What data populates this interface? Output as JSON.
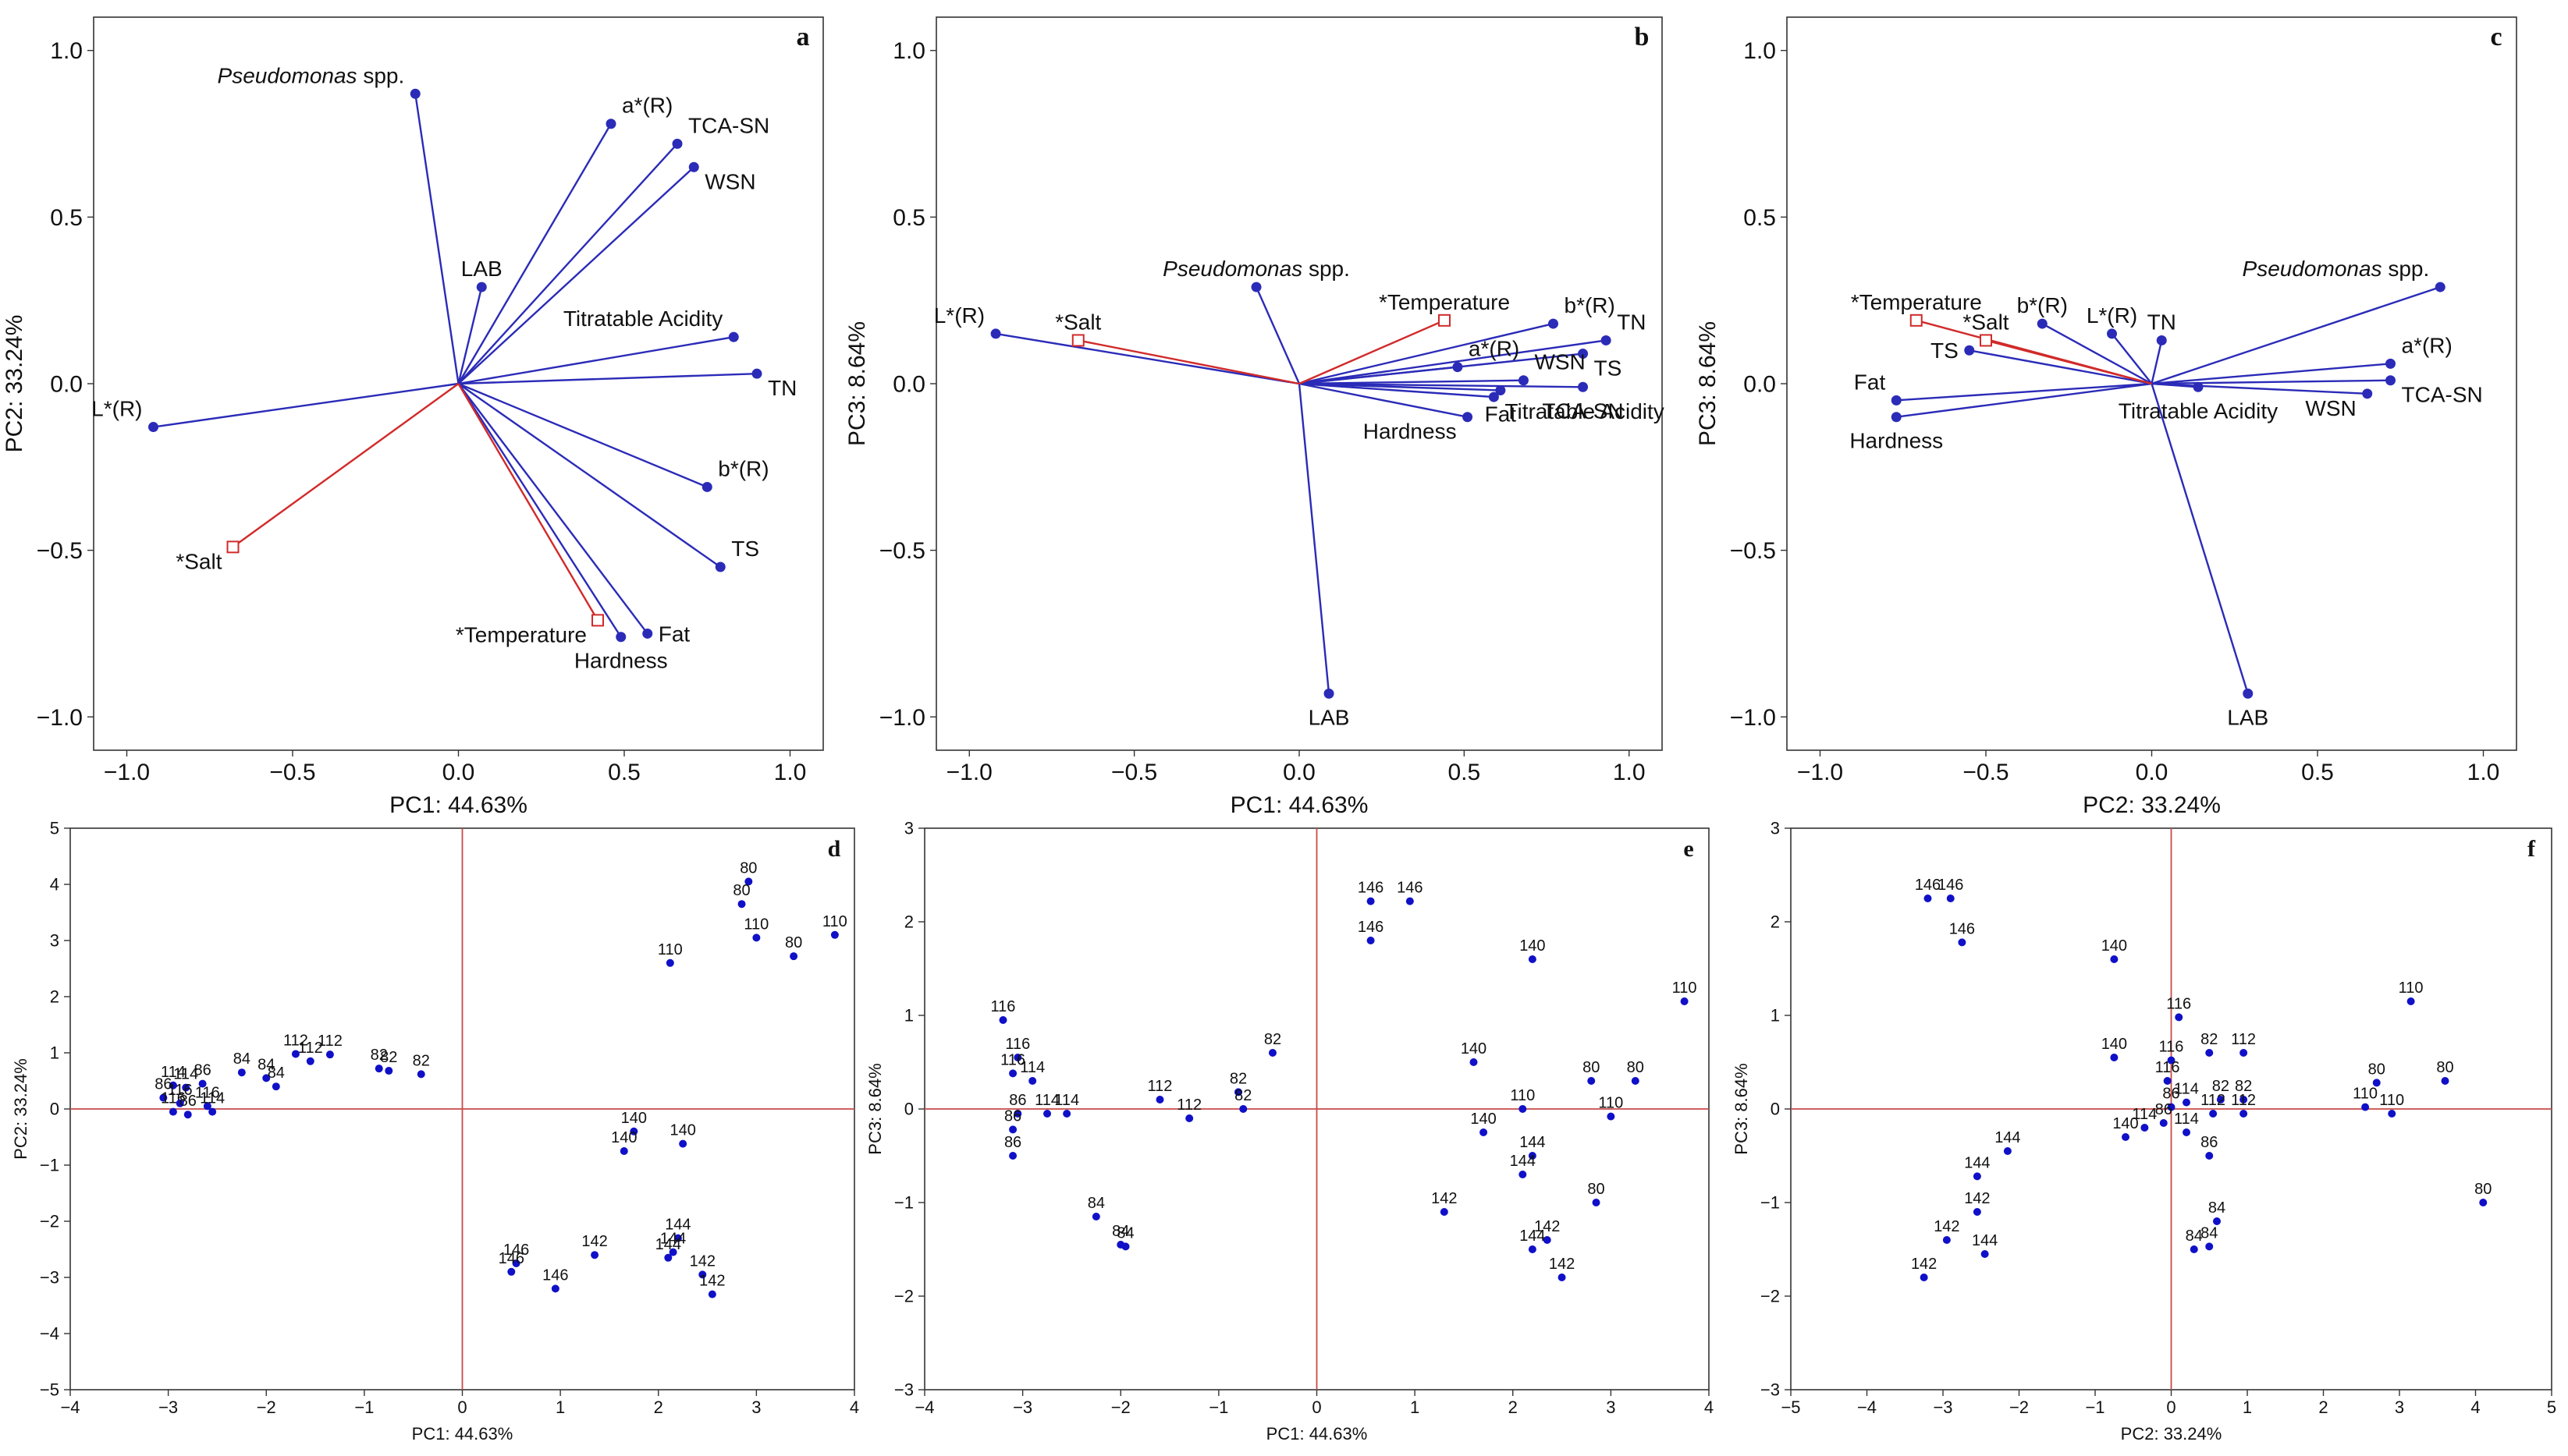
{
  "colors": {
    "vector": "#2b2bb8",
    "supplementary": "#d12a2a",
    "point": "#1010c8",
    "axis": "#333333",
    "crosshair": "#c84a4a"
  },
  "chart_data": [
    {
      "type": "scatter",
      "subtype": "loadings",
      "panel_label": "a",
      "xlabel": "PC1: 44.63%",
      "ylabel": "PC2: 33.24%",
      "xlim": [
        -1.1,
        1.1
      ],
      "ylim": [
        -1.1,
        1.1
      ],
      "xticks": [
        -1.0,
        -0.5,
        0.0,
        0.5,
        1.0
      ],
      "xtick_labels": [
        "−1.0",
        "−0.5",
        "0.0",
        "0.5",
        "1.0"
      ],
      "yticks": [
        -1.0,
        -0.5,
        0.0,
        0.5,
        1.0
      ],
      "ytick_labels": [
        "−1.0",
        "−0.5",
        "0.0",
        "0.5",
        "1.0"
      ],
      "vectors": [
        {
          "label": "Pseudomonas spp.",
          "x": -0.13,
          "y": 0.87,
          "italic_part": "Pseudomonas",
          "pos": "tl"
        },
        {
          "label": "a*(R)",
          "x": 0.46,
          "y": 0.78,
          "pos": "tr"
        },
        {
          "label": "TCA-SN",
          "x": 0.66,
          "y": 0.72,
          "pos": "tr"
        },
        {
          "label": "WSN",
          "x": 0.71,
          "y": 0.65,
          "pos": "br"
        },
        {
          "label": "LAB",
          "x": 0.07,
          "y": 0.29,
          "pos": "t"
        },
        {
          "label": "Titratable Acidity",
          "x": 0.83,
          "y": 0.14,
          "pos": "tl"
        },
        {
          "label": "TN",
          "x": 0.9,
          "y": 0.03,
          "pos": "br"
        },
        {
          "label": "L*(R)",
          "x": -0.92,
          "y": -0.13,
          "pos": "tl"
        },
        {
          "label": "b*(R)",
          "x": 0.75,
          "y": -0.31,
          "pos": "tr"
        },
        {
          "label": "TS",
          "x": 0.79,
          "y": -0.55,
          "pos": "tr"
        },
        {
          "label": "Fat",
          "x": 0.57,
          "y": -0.75,
          "pos": "r"
        },
        {
          "label": "Hardness",
          "x": 0.49,
          "y": -0.76,
          "pos": "b"
        }
      ],
      "supplementary": [
        {
          "label": "*Salt",
          "x": -0.68,
          "y": -0.49,
          "pos": "bl"
        },
        {
          "label": "*Temperature",
          "x": 0.42,
          "y": -0.71,
          "pos": "bl"
        }
      ]
    },
    {
      "type": "scatter",
      "subtype": "loadings",
      "panel_label": "b",
      "xlabel": "PC1: 44.63%",
      "ylabel": "PC3: 8.64%",
      "xlim": [
        -1.1,
        1.1
      ],
      "ylim": [
        -1.1,
        1.1
      ],
      "xticks": [
        -1.0,
        -0.5,
        0.0,
        0.5,
        1.0
      ],
      "xtick_labels": [
        "−1.0",
        "−0.5",
        "0.0",
        "0.5",
        "1.0"
      ],
      "yticks": [
        -1.0,
        -0.5,
        0.0,
        0.5,
        1.0
      ],
      "ytick_labels": [
        "−1.0",
        "−0.5",
        "0.0",
        "0.5",
        "1.0"
      ],
      "vectors": [
        {
          "label": "L*(R)",
          "x": -0.92,
          "y": 0.15,
          "pos": "tl"
        },
        {
          "label": "Pseudomonas spp.",
          "x": -0.13,
          "y": 0.29,
          "italic_part": "Pseudomonas",
          "pos": "t"
        },
        {
          "label": "b*(R)",
          "x": 0.77,
          "y": 0.18,
          "pos": "tr"
        },
        {
          "label": "TN",
          "x": 0.93,
          "y": 0.13,
          "pos": "tr"
        },
        {
          "label": "a*(R)",
          "x": 0.48,
          "y": 0.05,
          "pos": "tr"
        },
        {
          "label": "TS",
          "x": 0.86,
          "y": 0.09,
          "pos": "br"
        },
        {
          "label": "WSN",
          "x": 0.68,
          "y": 0.01,
          "pos": "tr"
        },
        {
          "label": "Titratable Acidity",
          "x": 0.59,
          "y": -0.04,
          "pos": "br"
        },
        {
          "label": "TCA-SN",
          "x": 0.86,
          "y": -0.01,
          "pos": "b"
        },
        {
          "label": "Hardness",
          "x": 0.51,
          "y": -0.1,
          "pos": "bl"
        },
        {
          "label": "Fat",
          "x": 0.61,
          "y": -0.02,
          "pos": "b"
        },
        {
          "label": "LAB",
          "x": 0.09,
          "y": -0.93,
          "pos": "b"
        }
      ],
      "supplementary": [
        {
          "label": "*Salt",
          "x": -0.67,
          "y": 0.13,
          "pos": "t"
        },
        {
          "label": "*Temperature",
          "x": 0.44,
          "y": 0.19,
          "pos": "t"
        }
      ]
    },
    {
      "type": "scatter",
      "subtype": "loadings",
      "panel_label": "c",
      "xlabel": "PC2: 33.24%",
      "ylabel": "PC3: 8.64%",
      "xlim": [
        -1.1,
        1.1
      ],
      "ylim": [
        -1.1,
        1.1
      ],
      "xticks": [
        -1.0,
        -0.5,
        0.0,
        0.5,
        1.0
      ],
      "xtick_labels": [
        "−1.0",
        "−0.5",
        "0.0",
        "0.5",
        "1.0"
      ],
      "yticks": [
        -1.0,
        -0.5,
        0.0,
        0.5,
        1.0
      ],
      "ytick_labels": [
        "−1.0",
        "−0.5",
        "0.0",
        "0.5",
        "1.0"
      ],
      "vectors": [
        {
          "label": "Pseudomonas spp.",
          "x": 0.87,
          "y": 0.29,
          "italic_part": "Pseudomonas",
          "pos": "tl"
        },
        {
          "label": "a*(R)",
          "x": 0.72,
          "y": 0.06,
          "pos": "tr"
        },
        {
          "label": "TCA-SN",
          "x": 0.72,
          "y": 0.01,
          "pos": "br"
        },
        {
          "label": "WSN",
          "x": 0.65,
          "y": -0.03,
          "pos": "bl"
        },
        {
          "label": "Titratable Acidity",
          "x": 0.14,
          "y": -0.01,
          "pos": "b"
        },
        {
          "label": "TN",
          "x": 0.03,
          "y": 0.13,
          "pos": "t"
        },
        {
          "label": "L*(R)",
          "x": -0.12,
          "y": 0.15,
          "pos": "t"
        },
        {
          "label": "b*(R)",
          "x": -0.33,
          "y": 0.18,
          "pos": "t"
        },
        {
          "label": "TS",
          "x": -0.55,
          "y": 0.1,
          "pos": "l"
        },
        {
          "label": "Fat",
          "x": -0.77,
          "y": -0.05,
          "pos": "tl"
        },
        {
          "label": "Hardness",
          "x": -0.77,
          "y": -0.1,
          "pos": "b"
        },
        {
          "label": "LAB",
          "x": 0.29,
          "y": -0.93,
          "pos": "b"
        }
      ],
      "supplementary": [
        {
          "label": "*Temperature",
          "x": -0.71,
          "y": 0.19,
          "pos": "t"
        },
        {
          "label": "*Salt",
          "x": -0.5,
          "y": 0.13,
          "pos": "t"
        }
      ]
    },
    {
      "type": "scatter",
      "subtype": "scores",
      "panel_label": "d",
      "xlabel": "PC1: 44.63%",
      "ylabel": "PC2: 33.24%",
      "xlim": [
        -4,
        4
      ],
      "ylim": [
        -5,
        5
      ],
      "xticks": [
        -4,
        -3,
        -2,
        -1,
        0,
        1,
        2,
        3,
        4
      ],
      "xtick_labels": [
        "−4",
        "−3",
        "−2",
        "−1",
        "0",
        "1",
        "2",
        "3",
        "4"
      ],
      "yticks": [
        -5,
        -4,
        -3,
        -2,
        -1,
        0,
        1,
        2,
        3,
        4,
        5
      ],
      "ytick_labels": [
        "−5",
        "−4",
        "−3",
        "−2",
        "−1",
        "0",
        "1",
        "2",
        "3",
        "4",
        "5"
      ],
      "points": [
        {
          "label": "80",
          "x": 2.92,
          "y": 4.05
        },
        {
          "label": "80",
          "x": 2.85,
          "y": 3.65
        },
        {
          "label": "110",
          "x": 3.0,
          "y": 3.05
        },
        {
          "label": "80",
          "x": 3.38,
          "y": 2.72
        },
        {
          "label": "110",
          "x": 3.8,
          "y": 3.1
        },
        {
          "label": "110",
          "x": 2.12,
          "y": 2.6
        },
        {
          "label": "112",
          "x": -1.7,
          "y": 0.98
        },
        {
          "label": "112",
          "x": -1.35,
          "y": 0.97
        },
        {
          "label": "112",
          "x": -1.55,
          "y": 0.85
        },
        {
          "label": "82",
          "x": -0.85,
          "y": 0.72
        },
        {
          "label": "82",
          "x": -0.75,
          "y": 0.68
        },
        {
          "label": "82",
          "x": -0.42,
          "y": 0.62
        },
        {
          "label": "84",
          "x": -2.25,
          "y": 0.65
        },
        {
          "label": "84",
          "x": -2.0,
          "y": 0.55
        },
        {
          "label": "84",
          "x": -1.9,
          "y": 0.4
        },
        {
          "label": "114",
          "x": -2.95,
          "y": 0.42
        },
        {
          "label": "114",
          "x": -2.82,
          "y": 0.38
        },
        {
          "label": "86",
          "x": -2.65,
          "y": 0.45
        },
        {
          "label": "86",
          "x": -3.05,
          "y": 0.2
        },
        {
          "label": "116",
          "x": -2.95,
          "y": -0.05
        },
        {
          "label": "116",
          "x": -2.88,
          "y": 0.1
        },
        {
          "label": "86",
          "x": -2.8,
          "y": -0.1
        },
        {
          "label": "116",
          "x": -2.6,
          "y": 0.05
        },
        {
          "label": "114",
          "x": -2.55,
          "y": -0.05
        },
        {
          "label": "140",
          "x": 1.75,
          "y": -0.4
        },
        {
          "label": "140",
          "x": 2.25,
          "y": -0.62
        },
        {
          "label": "140",
          "x": 1.65,
          "y": -0.75
        },
        {
          "label": "144",
          "x": 2.2,
          "y": -2.3
        },
        {
          "label": "144",
          "x": 2.15,
          "y": -2.55
        },
        {
          "label": "144",
          "x": 2.1,
          "y": -2.65
        },
        {
          "label": "142",
          "x": 1.35,
          "y": -2.6
        },
        {
          "label": "146",
          "x": 0.55,
          "y": -2.75
        },
        {
          "label": "146",
          "x": 0.5,
          "y": -2.9
        },
        {
          "label": "146",
          "x": 0.95,
          "y": -3.2
        },
        {
          "label": "142",
          "x": 2.45,
          "y": -2.95
        },
        {
          "label": "142",
          "x": 2.55,
          "y": -3.3
        }
      ]
    },
    {
      "type": "scatter",
      "subtype": "scores",
      "panel_label": "e",
      "xlabel": "PC1: 44.63%",
      "ylabel": "PC3: 8.64%",
      "xlim": [
        -4,
        4
      ],
      "ylim": [
        -3,
        3
      ],
      "xticks": [
        -4,
        -3,
        -2,
        -1,
        0,
        1,
        2,
        3,
        4
      ],
      "xtick_labels": [
        "−4",
        "−3",
        "−2",
        "−1",
        "0",
        "1",
        "2",
        "3",
        "4"
      ],
      "yticks": [
        -3,
        -2,
        -1,
        0,
        1,
        2,
        3
      ],
      "ytick_labels": [
        "−3",
        "−2",
        "−1",
        "0",
        "1",
        "2",
        "3"
      ],
      "points": [
        {
          "label": "146",
          "x": 0.55,
          "y": 2.22
        },
        {
          "label": "146",
          "x": 0.95,
          "y": 2.22
        },
        {
          "label": "146",
          "x": 0.55,
          "y": 1.8
        },
        {
          "label": "140",
          "x": 2.2,
          "y": 1.6
        },
        {
          "label": "110",
          "x": 3.75,
          "y": 1.15
        },
        {
          "label": "116",
          "x": -3.2,
          "y": 0.95
        },
        {
          "label": "116",
          "x": -3.05,
          "y": 0.55
        },
        {
          "label": "116",
          "x": -3.1,
          "y": 0.38
        },
        {
          "label": "114",
          "x": -2.9,
          "y": 0.3
        },
        {
          "label": "112",
          "x": -1.6,
          "y": 0.1
        },
        {
          "label": "112",
          "x": -1.3,
          "y": -0.1
        },
        {
          "label": "82",
          "x": -0.45,
          "y": 0.6
        },
        {
          "label": "82",
          "x": -0.8,
          "y": 0.18
        },
        {
          "label": "82",
          "x": -0.75,
          "y": 0.0
        },
        {
          "label": "86",
          "x": -3.05,
          "y": -0.05
        },
        {
          "label": "114",
          "x": -2.75,
          "y": -0.05
        },
        {
          "label": "114",
          "x": -2.55,
          "y": -0.05
        },
        {
          "label": "86",
          "x": -3.1,
          "y": -0.22
        },
        {
          "label": "86",
          "x": -3.1,
          "y": -0.5
        },
        {
          "label": "84",
          "x": -2.25,
          "y": -1.15
        },
        {
          "label": "84",
          "x": -2.0,
          "y": -1.45
        },
        {
          "label": "84",
          "x": -1.95,
          "y": -1.47
        },
        {
          "label": "140",
          "x": 1.6,
          "y": 0.5
        },
        {
          "label": "110",
          "x": 2.1,
          "y": 0.0
        },
        {
          "label": "140",
          "x": 1.7,
          "y": -0.25
        },
        {
          "label": "144",
          "x": 2.2,
          "y": -0.5
        },
        {
          "label": "144",
          "x": 2.1,
          "y": -0.7
        },
        {
          "label": "80",
          "x": 2.8,
          "y": 0.3
        },
        {
          "label": "80",
          "x": 3.25,
          "y": 0.3
        },
        {
          "label": "110",
          "x": 3.0,
          "y": -0.08
        },
        {
          "label": "142",
          "x": 1.3,
          "y": -1.1
        },
        {
          "label": "80",
          "x": 2.85,
          "y": -1.0
        },
        {
          "label": "142",
          "x": 2.35,
          "y": -1.4
        },
        {
          "label": "144",
          "x": 2.2,
          "y": -1.5
        },
        {
          "label": "142",
          "x": 2.5,
          "y": -1.8
        }
      ]
    },
    {
      "type": "scatter",
      "subtype": "scores",
      "panel_label": "f",
      "xlabel": "PC2: 33.24%",
      "ylabel": "PC3: 8.64%",
      "xlim": [
        -5,
        5
      ],
      "ylim": [
        -3,
        3
      ],
      "xticks": [
        -5,
        -4,
        -3,
        -2,
        -1,
        0,
        1,
        2,
        3,
        4,
        5
      ],
      "xtick_labels": [
        "−5",
        "−4",
        "−3",
        "−2",
        "−1",
        "0",
        "1",
        "2",
        "3",
        "4",
        "5"
      ],
      "yticks": [
        -3,
        -2,
        -1,
        0,
        1,
        2,
        3
      ],
      "ytick_labels": [
        "−3",
        "−2",
        "−1",
        "0",
        "1",
        "2",
        "3"
      ],
      "points": [
        {
          "label": "146",
          "x": -3.2,
          "y": 2.25
        },
        {
          "label": "146",
          "x": -2.9,
          "y": 2.25
        },
        {
          "label": "146",
          "x": -2.75,
          "y": 1.78
        },
        {
          "label": "140",
          "x": -0.75,
          "y": 1.6
        },
        {
          "label": "116",
          "x": 0.1,
          "y": 0.98
        },
        {
          "label": "110",
          "x": 3.15,
          "y": 1.15
        },
        {
          "label": "140",
          "x": -0.75,
          "y": 0.55
        },
        {
          "label": "116",
          "x": 0.0,
          "y": 0.52
        },
        {
          "label": "82",
          "x": 0.5,
          "y": 0.6
        },
        {
          "label": "112",
          "x": 0.95,
          "y": 0.6
        },
        {
          "label": "116",
          "x": -0.05,
          "y": 0.3
        },
        {
          "label": "114",
          "x": 0.2,
          "y": 0.07
        },
        {
          "label": "82",
          "x": 0.65,
          "y": 0.1
        },
        {
          "label": "82",
          "x": 0.95,
          "y": 0.1
        },
        {
          "label": "86",
          "x": 0.0,
          "y": 0.02
        },
        {
          "label": "112",
          "x": 0.55,
          "y": -0.05
        },
        {
          "label": "112",
          "x": 0.95,
          "y": -0.05
        },
        {
          "label": "114",
          "x": -0.35,
          "y": -0.2
        },
        {
          "label": "140",
          "x": -0.6,
          "y": -0.3
        },
        {
          "label": "114",
          "x": 0.2,
          "y": -0.25
        },
        {
          "label": "86",
          "x": -0.1,
          "y": -0.15
        },
        {
          "label": "86",
          "x": 0.5,
          "y": -0.5
        },
        {
          "label": "80",
          "x": 2.7,
          "y": 0.28
        },
        {
          "label": "80",
          "x": 3.6,
          "y": 0.3
        },
        {
          "label": "110",
          "x": 2.55,
          "y": 0.02
        },
        {
          "label": "110",
          "x": 2.9,
          "y": -0.05
        },
        {
          "label": "144",
          "x": -2.15,
          "y": -0.45
        },
        {
          "label": "144",
          "x": -2.55,
          "y": -0.72
        },
        {
          "label": "142",
          "x": -2.55,
          "y": -1.1
        },
        {
          "label": "142",
          "x": -2.95,
          "y": -1.4
        },
        {
          "label": "144",
          "x": -2.45,
          "y": -1.55
        },
        {
          "label": "142",
          "x": -3.25,
          "y": -1.8
        },
        {
          "label": "84",
          "x": 0.6,
          "y": -1.2
        },
        {
          "label": "84",
          "x": 0.5,
          "y": -1.47
        },
        {
          "label": "84",
          "x": 0.3,
          "y": -1.5
        },
        {
          "label": "80",
          "x": 4.1,
          "y": -1.0
        }
      ]
    }
  ]
}
